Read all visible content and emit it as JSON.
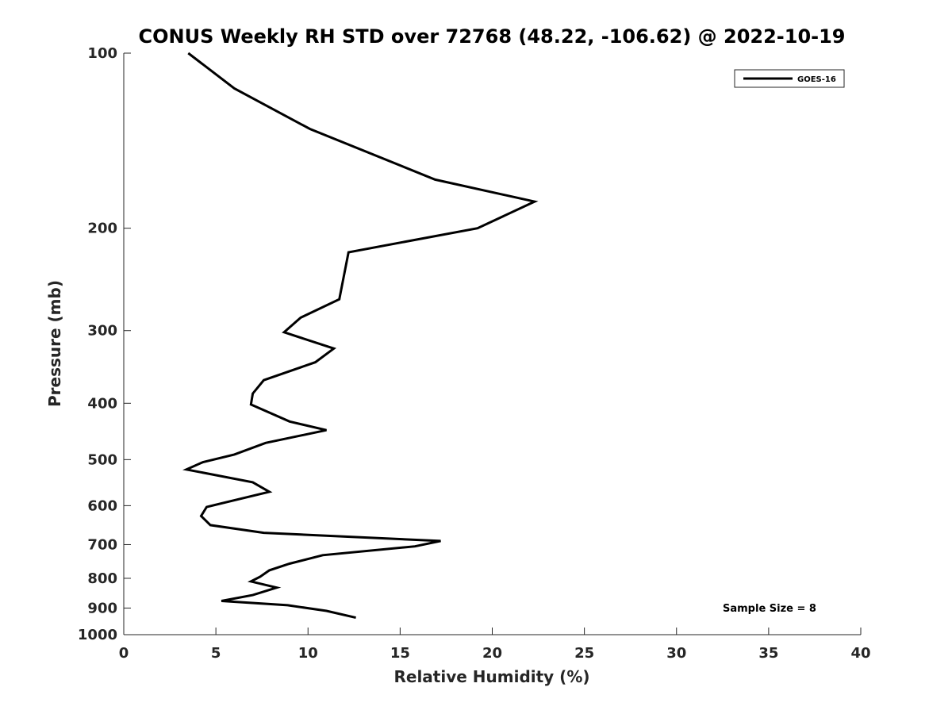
{
  "chart_data": {
    "type": "line",
    "title": "CONUS Weekly RH STD over 72768 (48.22, -106.62) @ 2022-10-19",
    "xlabel": "Relative Humidity (%)",
    "ylabel": "Pressure (mb)",
    "xlim": [
      0,
      40
    ],
    "ylim": [
      1000,
      100
    ],
    "y_scale": "log",
    "y_reversed": true,
    "x_ticks": [
      0,
      5,
      10,
      15,
      20,
      25,
      30,
      35,
      40
    ],
    "y_ticks": [
      100,
      200,
      300,
      400,
      500,
      600,
      700,
      800,
      900,
      1000
    ],
    "grid": false,
    "legend_position": "top-right",
    "series": [
      {
        "name": "GOES-16",
        "color": "#000000",
        "points": [
          [
            3.5,
            100
          ],
          [
            6.0,
            115
          ],
          [
            10.1,
            135
          ],
          [
            16.9,
            165
          ],
          [
            22.3,
            180
          ],
          [
            19.2,
            200
          ],
          [
            12.2,
            220
          ],
          [
            11.7,
            265
          ],
          [
            9.6,
            285
          ],
          [
            8.7,
            302
          ],
          [
            11.4,
            322
          ],
          [
            10.4,
            340
          ],
          [
            7.6,
            365
          ],
          [
            7.0,
            385
          ],
          [
            6.9,
            402
          ],
          [
            9.0,
            430
          ],
          [
            11.0,
            445
          ],
          [
            7.7,
            468
          ],
          [
            6.0,
            490
          ],
          [
            4.3,
            505
          ],
          [
            3.4,
            520
          ],
          [
            7.0,
            547
          ],
          [
            7.9,
            568
          ],
          [
            4.5,
            603
          ],
          [
            4.2,
            625
          ],
          [
            4.7,
            648
          ],
          [
            7.6,
            668
          ],
          [
            17.2,
            690
          ],
          [
            15.8,
            705
          ],
          [
            10.8,
            730
          ],
          [
            9.0,
            755
          ],
          [
            7.9,
            775
          ],
          [
            7.4,
            795
          ],
          [
            6.9,
            810
          ],
          [
            8.3,
            830
          ],
          [
            7.0,
            855
          ],
          [
            5.3,
            875
          ],
          [
            8.9,
            890
          ],
          [
            11.0,
            910
          ],
          [
            12.6,
            935
          ]
        ]
      }
    ],
    "annotations": [
      "Sample Size = 8"
    ]
  }
}
